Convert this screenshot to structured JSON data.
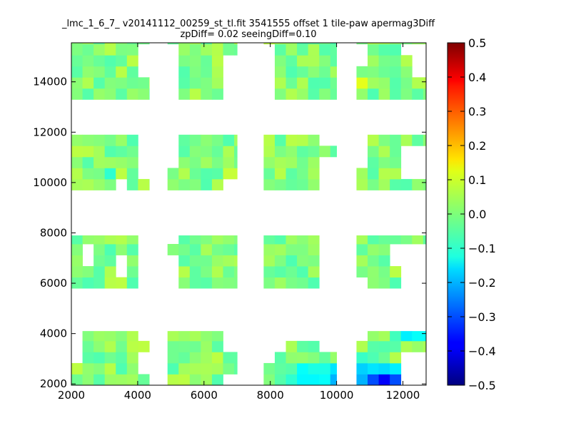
{
  "chart_data": {
    "type": "heatmap",
    "title": "_lmc_1_6_7_ v20141112_00259_st_tl.fit 3541555 offset 1 tile-paw apermag3Diff",
    "subtitle": "zpDiff= 0.02 seeingDiff=0.10",
    "xlabel": "",
    "ylabel": "",
    "xlim": [
      2000,
      12700
    ],
    "ylim": [
      1950,
      15550
    ],
    "xticks": [
      "2000",
      "4000",
      "6000",
      "8000",
      "10000",
      "12000"
    ],
    "yticks": [
      "2000",
      "4000",
      "6000",
      "8000",
      "10000",
      "12000",
      "14000"
    ],
    "grid": false,
    "colorbar": {
      "colormap": "jet",
      "vmin": -0.5,
      "vmax": 0.5,
      "ticks": [
        "0.5",
        "0.4",
        "0.3",
        "0.2",
        "0.1",
        "0.0",
        "−0.1",
        "−0.2",
        "−0.3",
        "−0.4",
        "−0.5"
      ]
    },
    "cell_size": [
      335,
      440
    ],
    "blocks": [
      {
        "x0": 2000,
        "y0": 13300,
        "x1": 4350,
        "y1": 15550
      },
      {
        "x0": 4900,
        "y0": 13300,
        "x1": 7000,
        "y1": 15550
      },
      {
        "x0": 7800,
        "y0": 13300,
        "x1": 10000,
        "y1": 15550
      },
      {
        "x0": 10600,
        "y0": 13300,
        "x1": 12700,
        "y1": 15550
      },
      {
        "x0": 2000,
        "y0": 9700,
        "x1": 4350,
        "y1": 11900
      },
      {
        "x0": 4900,
        "y0": 9700,
        "x1": 7000,
        "y1": 11900
      },
      {
        "x0": 7800,
        "y0": 9700,
        "x1": 10000,
        "y1": 11900
      },
      {
        "x0": 10600,
        "y0": 9700,
        "x1": 12700,
        "y1": 11900
      },
      {
        "x0": 2000,
        "y0": 5800,
        "x1": 4350,
        "y1": 7900
      },
      {
        "x0": 4900,
        "y0": 5800,
        "x1": 7000,
        "y1": 7900
      },
      {
        "x0": 7800,
        "y0": 5800,
        "x1": 10000,
        "y1": 7900
      },
      {
        "x0": 10600,
        "y0": 5800,
        "x1": 12700,
        "y1": 7900
      },
      {
        "x0": 2000,
        "y0": 1950,
        "x1": 4350,
        "y1": 4100
      },
      {
        "x0": 4900,
        "y0": 1950,
        "x1": 7000,
        "y1": 4100
      },
      {
        "x0": 7800,
        "y0": 1950,
        "x1": 10000,
        "y1": 4100
      },
      {
        "x0": 10600,
        "y0": 1950,
        "x1": 12700,
        "y1": 4100
      }
    ],
    "missing_cells": [
      {
        "x": 4250,
        "y": 15200
      },
      {
        "x": 4250,
        "y": 14800
      },
      {
        "x": 4250,
        "y": 14400
      },
      {
        "x": 4950,
        "y": 15200
      },
      {
        "x": 4950,
        "y": 14800
      },
      {
        "x": 4950,
        "y": 14400
      },
      {
        "x": 4950,
        "y": 14000
      },
      {
        "x": 4950,
        "y": 13500
      },
      {
        "x": 6800,
        "y": 14800
      },
      {
        "x": 6800,
        "y": 14400
      },
      {
        "x": 6800,
        "y": 14000
      },
      {
        "x": 6800,
        "y": 13500
      },
      {
        "x": 7850,
        "y": 15200
      },
      {
        "x": 7850,
        "y": 14800
      },
      {
        "x": 7850,
        "y": 14400
      },
      {
        "x": 7850,
        "y": 14000
      },
      {
        "x": 7850,
        "y": 13500
      },
      {
        "x": 10650,
        "y": 15200
      },
      {
        "x": 10650,
        "y": 14800
      },
      {
        "x": 12500,
        "y": 15200
      },
      {
        "x": 12500,
        "y": 14800
      },
      {
        "x": 12500,
        "y": 14400
      },
      {
        "x": 12200,
        "y": 15200
      },
      {
        "x": 4250,
        "y": 11700
      },
      {
        "x": 4250,
        "y": 11300
      },
      {
        "x": 4250,
        "y": 10800
      },
      {
        "x": 4250,
        "y": 10400
      },
      {
        "x": 3600,
        "y": 9900
      },
      {
        "x": 6800,
        "y": 9900
      },
      {
        "x": 4950,
        "y": 11700
      },
      {
        "x": 4950,
        "y": 11300
      },
      {
        "x": 4950,
        "y": 10800
      },
      {
        "x": 9800,
        "y": 11700
      },
      {
        "x": 9800,
        "y": 10800
      },
      {
        "x": 9800,
        "y": 10400
      },
      {
        "x": 9800,
        "y": 9900
      },
      {
        "x": 12500,
        "y": 11300
      },
      {
        "x": 12500,
        "y": 10800
      },
      {
        "x": 12500,
        "y": 10400
      },
      {
        "x": 12200,
        "y": 11300
      },
      {
        "x": 12200,
        "y": 10800
      },
      {
        "x": 12200,
        "y": 10400
      },
      {
        "x": 10650,
        "y": 11700
      },
      {
        "x": 10650,
        "y": 11300
      },
      {
        "x": 10650,
        "y": 10800
      },
      {
        "x": 2550,
        "y": 7100
      },
      {
        "x": 3550,
        "y": 6700
      },
      {
        "x": 4250,
        "y": 7700
      },
      {
        "x": 4250,
        "y": 7100
      },
      {
        "x": 4250,
        "y": 6700
      },
      {
        "x": 4250,
        "y": 6300
      },
      {
        "x": 4250,
        "y": 5900
      },
      {
        "x": 4950,
        "y": 7700
      },
      {
        "x": 4950,
        "y": 6700
      },
      {
        "x": 4950,
        "y": 6300
      },
      {
        "x": 4950,
        "y": 5900
      },
      {
        "x": 9800,
        "y": 7700
      },
      {
        "x": 9800,
        "y": 7100
      },
      {
        "x": 9800,
        "y": 6300
      },
      {
        "x": 9800,
        "y": 5900
      },
      {
        "x": 12500,
        "y": 7100
      },
      {
        "x": 12500,
        "y": 6700
      },
      {
        "x": 12200,
        "y": 6700
      },
      {
        "x": 12200,
        "y": 7100
      },
      {
        "x": 11900,
        "y": 7100
      },
      {
        "x": 12500,
        "y": 6300
      },
      {
        "x": 12200,
        "y": 6300
      },
      {
        "x": 12500,
        "y": 5900
      },
      {
        "x": 12200,
        "y": 5900
      },
      {
        "x": 10650,
        "y": 5900
      },
      {
        "x": 2150,
        "y": 3900
      },
      {
        "x": 2150,
        "y": 3400
      },
      {
        "x": 2150,
        "y": 3000
      },
      {
        "x": 4250,
        "y": 3900
      },
      {
        "x": 4250,
        "y": 3000
      },
      {
        "x": 4250,
        "y": 2600
      },
      {
        "x": 6800,
        "y": 3900
      },
      {
        "x": 6800,
        "y": 3400
      },
      {
        "x": 6800,
        "y": 2150
      },
      {
        "x": 7850,
        "y": 3900
      },
      {
        "x": 7850,
        "y": 3400
      },
      {
        "x": 7850,
        "y": 3000
      },
      {
        "x": 9800,
        "y": 3900
      },
      {
        "x": 9800,
        "y": 3400
      },
      {
        "x": 9500,
        "y": 3900
      },
      {
        "x": 9200,
        "y": 3900
      },
      {
        "x": 8900,
        "y": 3900
      },
      {
        "x": 8500,
        "y": 3900
      },
      {
        "x": 8200,
        "y": 3900
      },
      {
        "x": 8200,
        "y": 3400
      },
      {
        "x": 10650,
        "y": 3900
      },
      {
        "x": 12500,
        "y": 3000
      },
      {
        "x": 12500,
        "y": 2600
      },
      {
        "x": 12500,
        "y": 2150
      },
      {
        "x": 12200,
        "y": 3000
      },
      {
        "x": 12200,
        "y": 2600
      },
      {
        "x": 12200,
        "y": 2150
      }
    ],
    "highlight_cells": [
      {
        "x": 11250,
        "y": 5650,
        "value": 0.22
      },
      {
        "x": 11600,
        "y": 5650,
        "value": 0.07
      },
      {
        "x": 3100,
        "y": 10300,
        "value": -0.08
      },
      {
        "x": 10750,
        "y": 14100,
        "value": 0.1
      },
      {
        "x": 6800,
        "y": 10300,
        "value": 0.07
      },
      {
        "x": 4200,
        "y": 3600,
        "value": 0.06
      },
      {
        "x": 12200,
        "y": 3900,
        "value": -0.14
      },
      {
        "x": 12550,
        "y": 3900,
        "value": -0.12
      },
      {
        "x": 11900,
        "y": 3900,
        "value": -0.06
      },
      {
        "x": 8850,
        "y": 2600,
        "value": -0.12
      },
      {
        "x": 9200,
        "y": 2600,
        "value": -0.1
      },
      {
        "x": 9550,
        "y": 2600,
        "value": -0.1
      },
      {
        "x": 9850,
        "y": 2600,
        "value": -0.15
      },
      {
        "x": 8500,
        "y": 2150,
        "value": -0.08
      },
      {
        "x": 8850,
        "y": 2150,
        "value": -0.13
      },
      {
        "x": 9200,
        "y": 2150,
        "value": -0.13
      },
      {
        "x": 9550,
        "y": 2150,
        "value": -0.12
      },
      {
        "x": 9850,
        "y": 2150,
        "value": -0.2
      },
      {
        "x": 10800,
        "y": 2600,
        "value": -0.17
      },
      {
        "x": 11150,
        "y": 2600,
        "value": -0.15
      },
      {
        "x": 11500,
        "y": 2600,
        "value": -0.16
      },
      {
        "x": 11850,
        "y": 2600,
        "value": -0.14
      },
      {
        "x": 10800,
        "y": 2150,
        "value": -0.2
      },
      {
        "x": 11150,
        "y": 2150,
        "value": -0.3
      },
      {
        "x": 11500,
        "y": 2150,
        "value": -0.38
      },
      {
        "x": 11850,
        "y": 2150,
        "value": -0.3
      },
      {
        "x": 10800,
        "y": 3000,
        "value": -0.07
      },
      {
        "x": 11150,
        "y": 3000,
        "value": -0.05
      }
    ],
    "base_value_range": [
      -0.05,
      0.06
    ]
  }
}
